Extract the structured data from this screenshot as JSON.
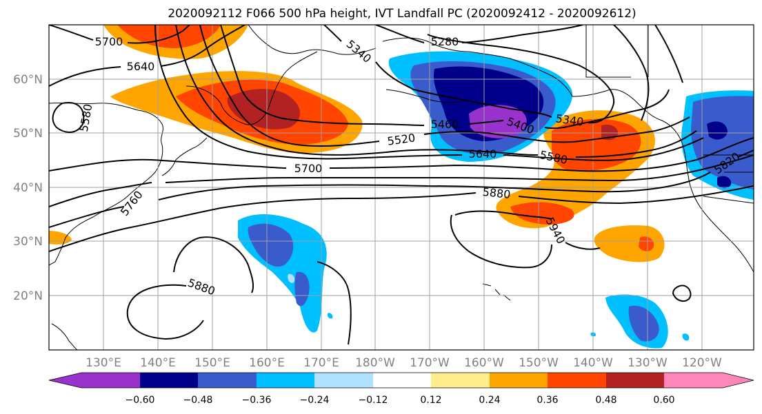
{
  "title": "2020092112 F066 500 hPa height, IVT Landfall PC (2020092412 - 2020092612)",
  "colors": {
    "shade_neg_strong": "#9932CC",
    "shade_neg_060": "#00008B",
    "shade_neg_048": "#3A5BCB",
    "shade_neg_036": "#00BFFF",
    "shade_neg_024": "#B0E2FF",
    "shade_neutral": "#FFFFFF",
    "shade_pos_012": "#FFEC8B",
    "shade_pos_024": "#FFA500",
    "shade_pos_036": "#FF4500",
    "shade_pos_048": "#B22222",
    "shade_pos_strong": "#FF86B8",
    "contour": "#000000",
    "grid": "#A0A0A0",
    "coast": "#000000"
  },
  "map": {
    "projection": "equirectangular",
    "lon_ticks": [
      "130°E",
      "140°E",
      "150°E",
      "160°E",
      "170°E",
      "180°W",
      "170°W",
      "160°W",
      "150°W",
      "140°W",
      "130°W",
      "120°W"
    ],
    "lat_ticks": [
      "60°N",
      "50°N",
      "40°N",
      "30°N",
      "20°N"
    ],
    "grid": true
  },
  "height_contours": {
    "units": "m",
    "labels": [
      "5700",
      "5640",
      "5340",
      "5280",
      "5580",
      "5460",
      "5400",
      "5520",
      "5640",
      "5580",
      "5340",
      "5700",
      "5820",
      "5880",
      "5760",
      "5940",
      "5880"
    ]
  },
  "colorbar": {
    "ticks": [
      "−0.60",
      "−0.48",
      "−0.36",
      "−0.24",
      "−0.12",
      "0.12",
      "0.24",
      "0.36",
      "0.48",
      "0.60"
    ],
    "extend": "both"
  }
}
